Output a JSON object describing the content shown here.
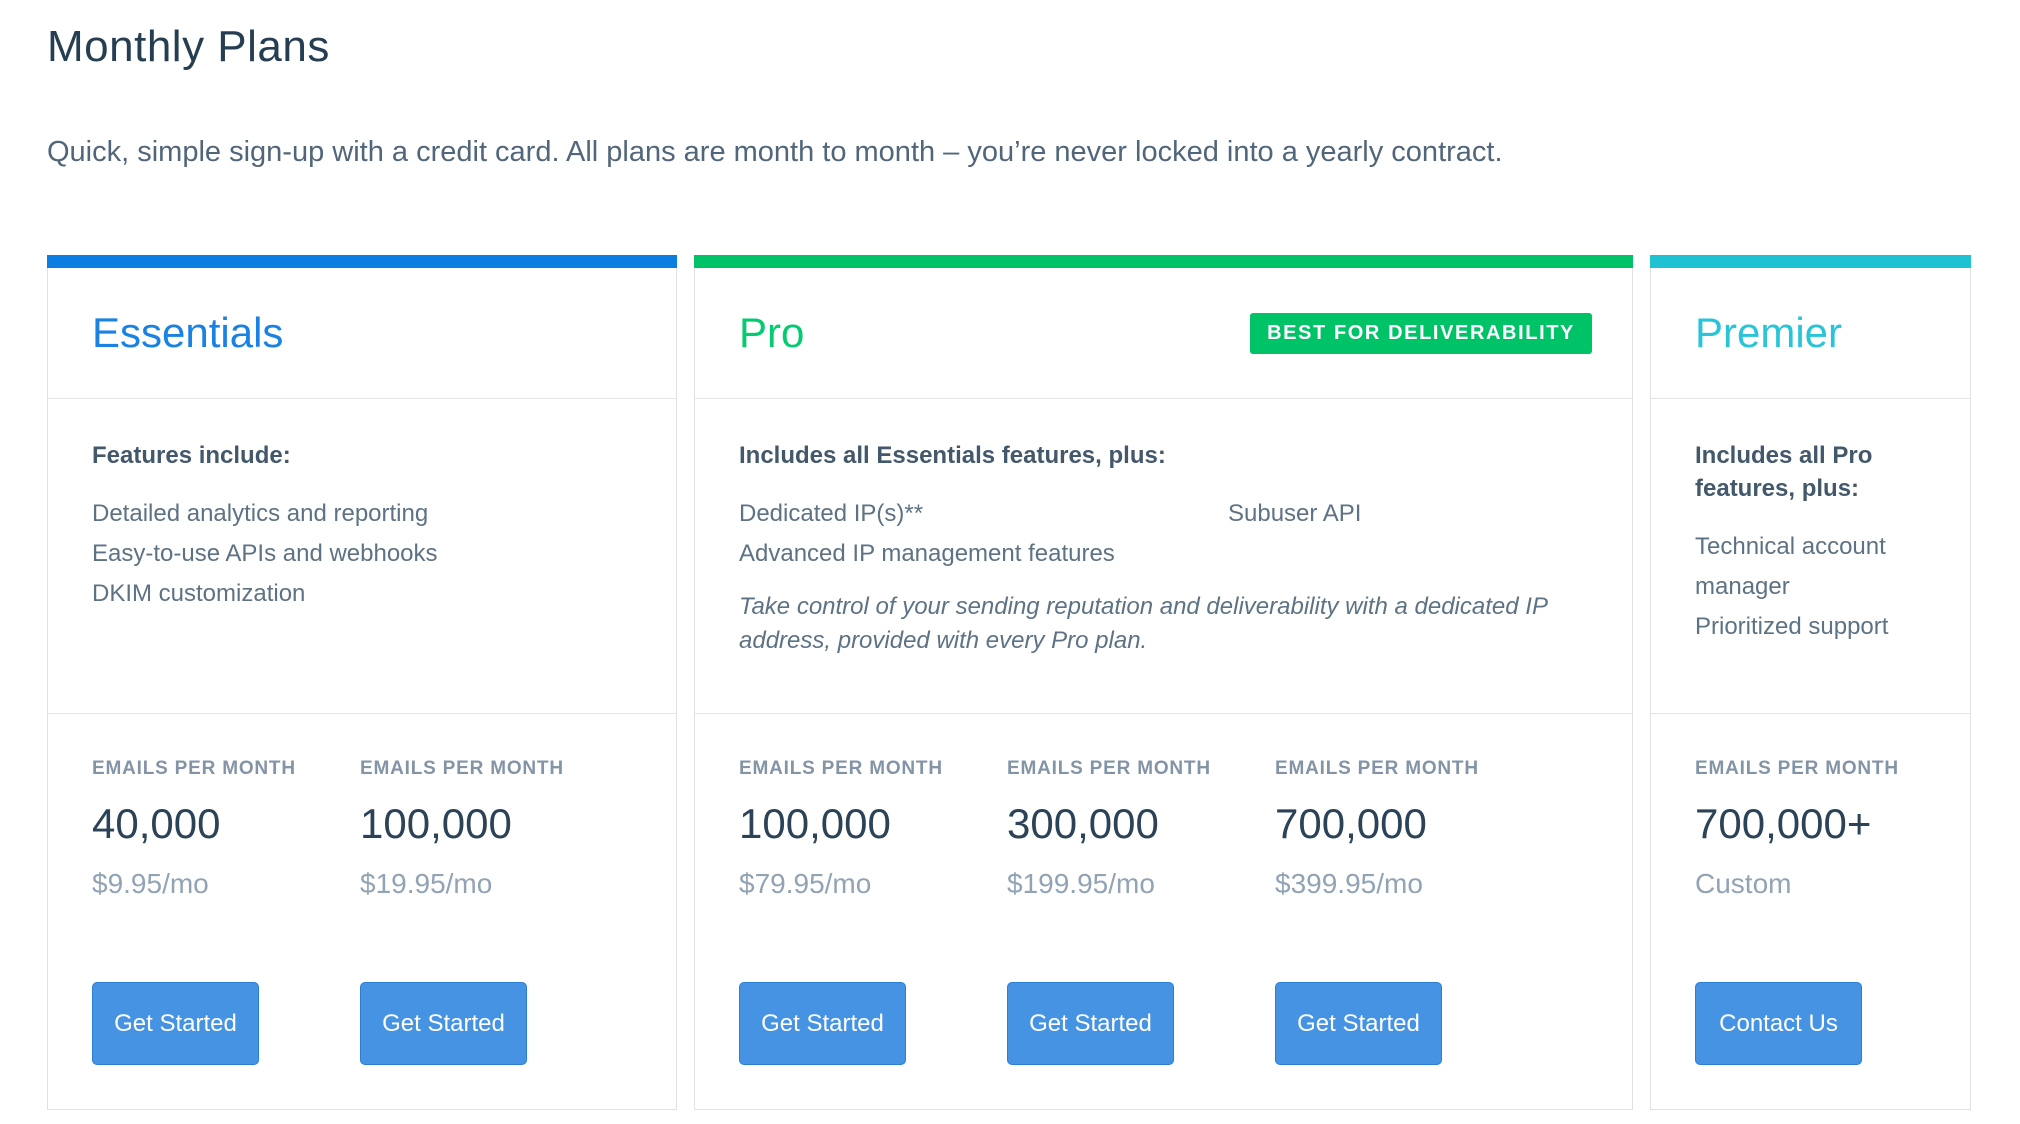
{
  "page": {
    "title": "Monthly Plans",
    "subtitle": "Quick, simple sign-up with a credit card. All plans are month to month – you’re never locked into a yearly contract."
  },
  "labels": {
    "emails_per_month": "EMAILS PER MONTH"
  },
  "colors": {
    "essentials_accent": "#0d7ee1",
    "essentials_title": "#1a82e2",
    "pro_accent": "#00c368",
    "pro_title": "#04ca70",
    "premier_accent": "#1fc2d3",
    "premier_title": "#29c4d8",
    "badge_background": "#00c368",
    "button_background": "#4593e2",
    "button_border": "#2b7fd2",
    "heading_text": "#263e52",
    "body_text": "#5d7284",
    "muted_label": "#8494a7",
    "price_text": "#91a3b5"
  },
  "plans": [
    {
      "name": "Essentials",
      "features_heading": "Features include:",
      "features": [
        "Detailed analytics and reporting",
        "Easy-to-use APIs and webhooks",
        "DKIM customization"
      ],
      "tiers": [
        {
          "volume": "40,000",
          "price": "$9.95/mo",
          "cta": "Get Started"
        },
        {
          "volume": "100,000",
          "price": "$19.95/mo",
          "cta": "Get Started"
        }
      ]
    },
    {
      "name": "Pro",
      "badge": "BEST FOR DELIVERABILITY",
      "features_heading": "Includes all Essentials features, plus:",
      "features_col1": [
        "Dedicated IP(s)**",
        "Advanced IP management features"
      ],
      "features_col2": [
        "Subuser API"
      ],
      "note": "Take control of your sending reputation and deliverability with a dedicated IP address, provided with every Pro plan.",
      "tiers": [
        {
          "volume": "100,000",
          "price": "$79.95/mo",
          "cta": "Get Started"
        },
        {
          "volume": "300,000",
          "price": "$199.95/mo",
          "cta": "Get Started"
        },
        {
          "volume": "700,000",
          "price": "$399.95/mo",
          "cta": "Get Started"
        }
      ]
    },
    {
      "name": "Premier",
      "features_heading": "Includes all Pro features, plus:",
      "features": [
        "Technical account manager",
        "Prioritized support"
      ],
      "tiers": [
        {
          "volume": "700,000+",
          "price": "Custom",
          "cta": "Contact Us"
        }
      ]
    }
  ]
}
